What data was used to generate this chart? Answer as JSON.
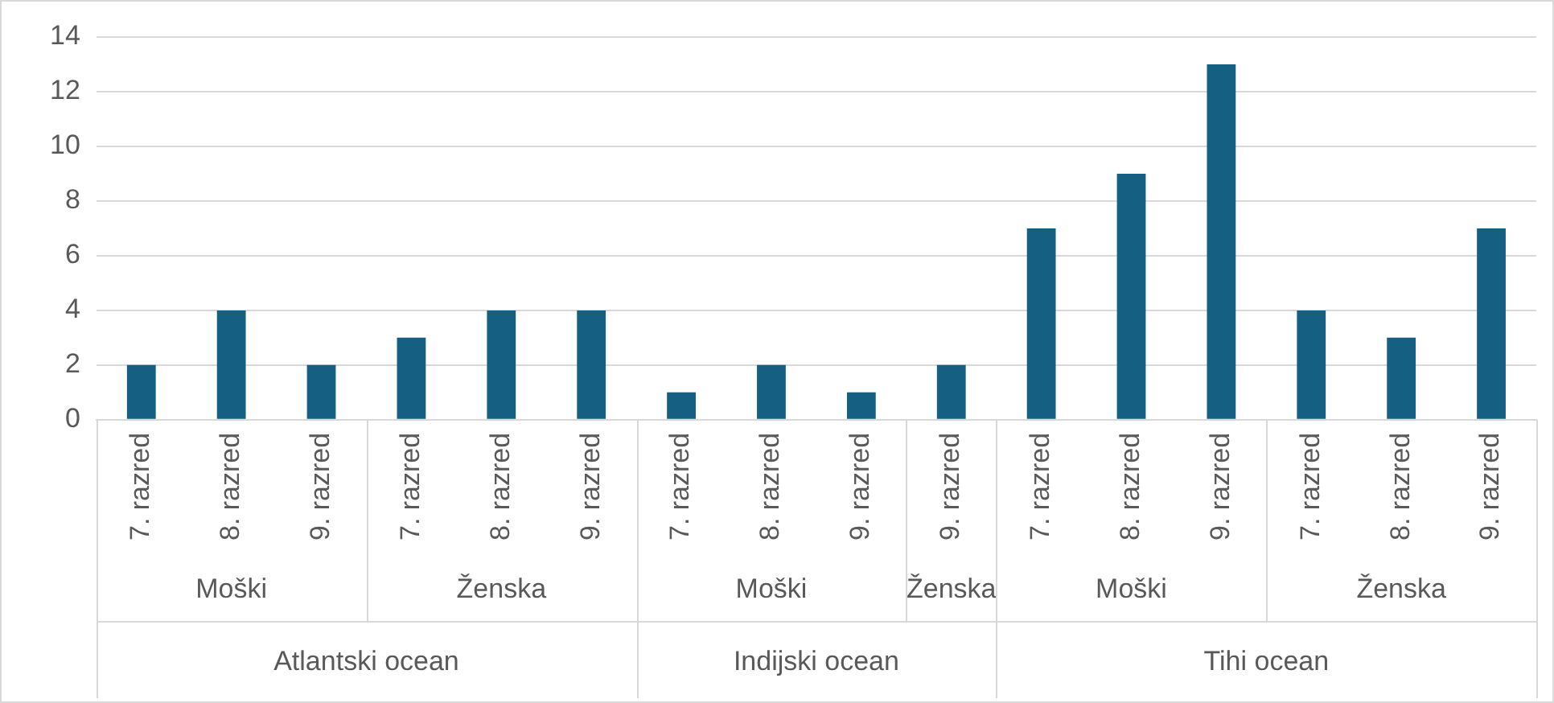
{
  "chart_data": {
    "type": "bar",
    "categories": [
      "7. razred",
      "8. razred",
      "9. razred",
      "7. razred",
      "8. razred",
      "9. razred",
      "7. razred",
      "8. razred",
      "9. razred",
      "9. razred",
      "7. razred",
      "8. razred",
      "9. razred",
      "7. razred",
      "8. razred",
      "9. razred"
    ],
    "values": [
      2,
      4,
      2,
      3,
      4,
      4,
      1,
      2,
      1,
      2,
      7,
      9,
      13,
      4,
      3,
      7
    ],
    "color": "#156082",
    "ylim": [
      0,
      14
    ],
    "yticks": [
      0,
      2,
      4,
      6,
      8,
      10,
      12,
      14
    ],
    "grid": "y",
    "legend": false,
    "annotations": [
      "Moški",
      "Ženska",
      "Moški",
      "Ženska",
      "Moški",
      "Ženska",
      "Atlantski ocean",
      "Indijski ocean",
      "Tihi ocean"
    ]
  }
}
